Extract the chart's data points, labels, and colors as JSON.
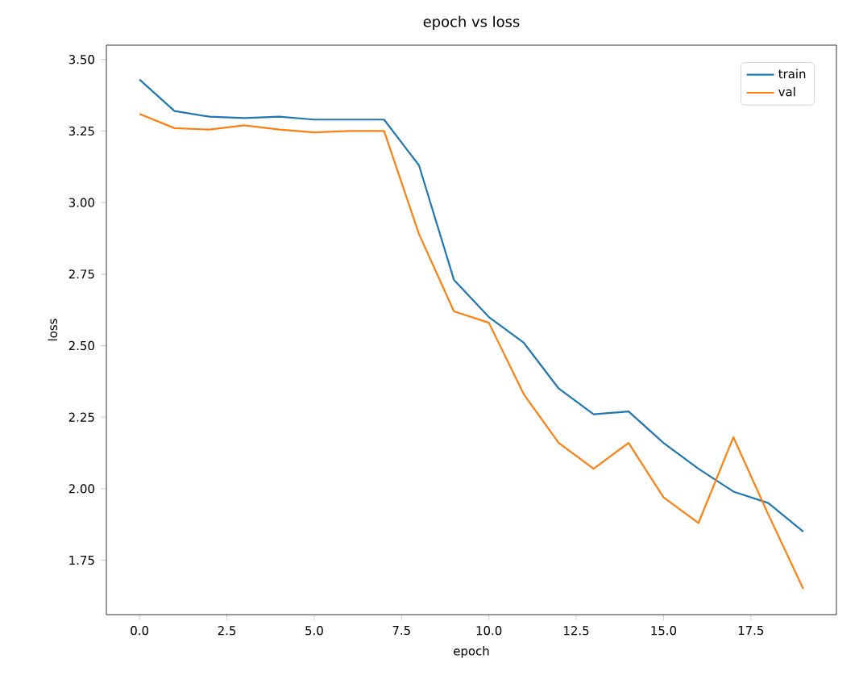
{
  "chart_data": {
    "type": "line",
    "title": "epoch vs loss",
    "xlabel": "epoch",
    "ylabel": "loss",
    "x": [
      0,
      1,
      2,
      3,
      4,
      5,
      6,
      7,
      8,
      9,
      10,
      11,
      12,
      13,
      14,
      15,
      16,
      17,
      18,
      19
    ],
    "series": [
      {
        "name": "train",
        "color": "#1f77b4",
        "values": [
          3.43,
          3.32,
          3.3,
          3.295,
          3.3,
          3.29,
          3.29,
          3.29,
          3.13,
          2.73,
          2.6,
          2.51,
          2.35,
          2.26,
          2.27,
          2.16,
          2.07,
          1.99,
          1.95,
          1.85
        ]
      },
      {
        "name": "val",
        "color": "#ff7f0e",
        "values": [
          3.31,
          3.26,
          3.255,
          3.27,
          3.255,
          3.245,
          3.25,
          3.25,
          2.89,
          2.62,
          2.58,
          2.33,
          2.16,
          2.07,
          2.16,
          1.97,
          1.88,
          2.18,
          1.91,
          1.65
        ]
      }
    ],
    "xlim": [
      -0.95,
      19.95
    ],
    "ylim": [
      1.56,
      3.55
    ],
    "xticks": [
      {
        "value": 0,
        "label": "0.0"
      },
      {
        "value": 2.5,
        "label": "2.5"
      },
      {
        "value": 5,
        "label": "5.0"
      },
      {
        "value": 7.5,
        "label": "7.5"
      },
      {
        "value": 10,
        "label": "10.0"
      },
      {
        "value": 12.5,
        "label": "12.5"
      },
      {
        "value": 15,
        "label": "15.0"
      },
      {
        "value": 17.5,
        "label": "17.5"
      }
    ],
    "yticks": [
      {
        "value": 1.75,
        "label": "1.75"
      },
      {
        "value": 2.0,
        "label": "2.00"
      },
      {
        "value": 2.25,
        "label": "2.25"
      },
      {
        "value": 2.5,
        "label": "2.50"
      },
      {
        "value": 2.75,
        "label": "2.75"
      },
      {
        "value": 3.0,
        "label": "3.00"
      },
      {
        "value": 3.25,
        "label": "3.25"
      },
      {
        "value": 3.5,
        "label": "3.50"
      }
    ],
    "grid": false,
    "legend": "top right",
    "marker": "none",
    "line_style": "solid"
  }
}
